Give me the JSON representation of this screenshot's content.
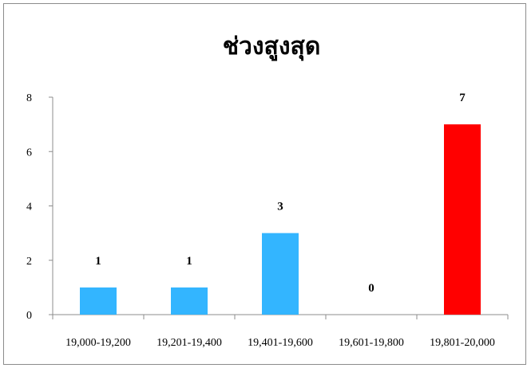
{
  "chart_data": {
    "type": "bar",
    "title": "ช่วงสูงสุด",
    "xlabel": "",
    "ylabel": "",
    "categories": [
      "19,000-19,200",
      "19,201-19,400",
      "19,401-19,600",
      "19,601-19,800",
      "19,801-20,000"
    ],
    "values": [
      1,
      1,
      3,
      0,
      7
    ],
    "data_labels": [
      "1",
      "1",
      "3",
      "0",
      "7"
    ],
    "bar_colors": [
      "#33b5ff",
      "#33b5ff",
      "#33b5ff",
      "#33b5ff",
      "#ff0000"
    ],
    "ylim": [
      0,
      8
    ],
    "yticks": [
      "0",
      "2",
      "4",
      "6",
      "8"
    ],
    "ytick_values": [
      0,
      2,
      4,
      6,
      8
    ],
    "grid": false,
    "legend": "none"
  }
}
